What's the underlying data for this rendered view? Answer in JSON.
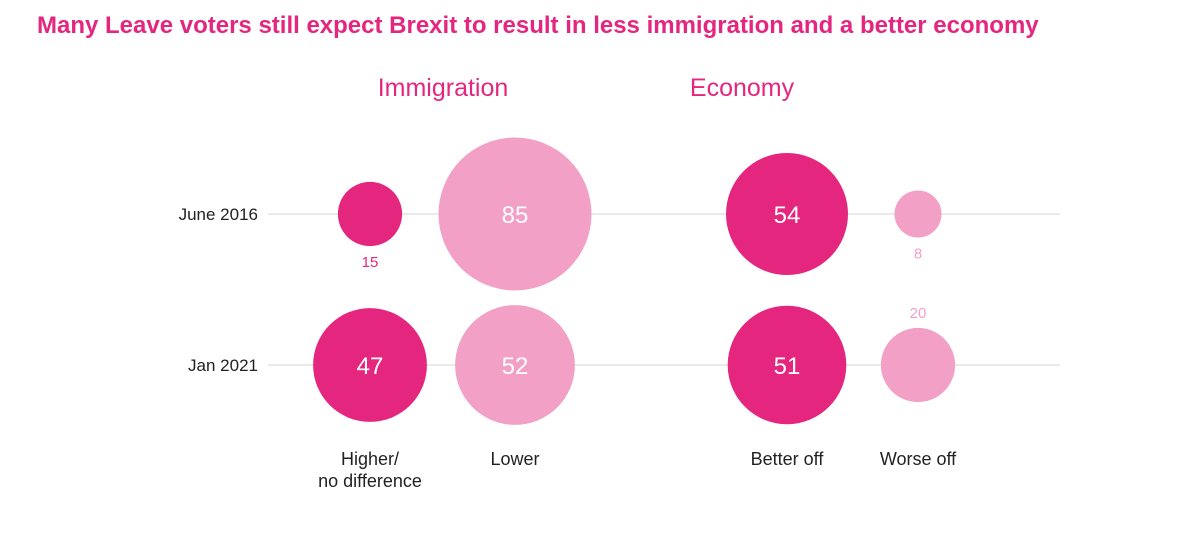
{
  "title": "Many Leave voters still expect Brexit to result in less immigration and a better economy",
  "colors": {
    "accent": "#e5267f",
    "light": "#f2a0c6",
    "axis_text": "#222222",
    "gridline": "#d6d6d6"
  },
  "chart_data": {
    "type": "bubble",
    "title": "Many Leave voters still expect Brexit to result in less immigration and a better economy",
    "rows": [
      "June 2016",
      "Jan 2021"
    ],
    "groups": [
      {
        "name": "Immigration",
        "columns": [
          {
            "label": "Higher/\nno difference",
            "color": "#e5267f",
            "values": [
              15,
              47
            ]
          },
          {
            "label": "Lower",
            "color": "#f2a0c6",
            "values": [
              85,
              52
            ]
          }
        ]
      },
      {
        "name": "Economy",
        "columns": [
          {
            "label": "Better off",
            "color": "#e5267f",
            "values": [
              54,
              51
            ]
          },
          {
            "label": "Worse off",
            "color": "#f2a0c6",
            "values": [
              8,
              20
            ]
          }
        ]
      }
    ],
    "grid": true
  }
}
